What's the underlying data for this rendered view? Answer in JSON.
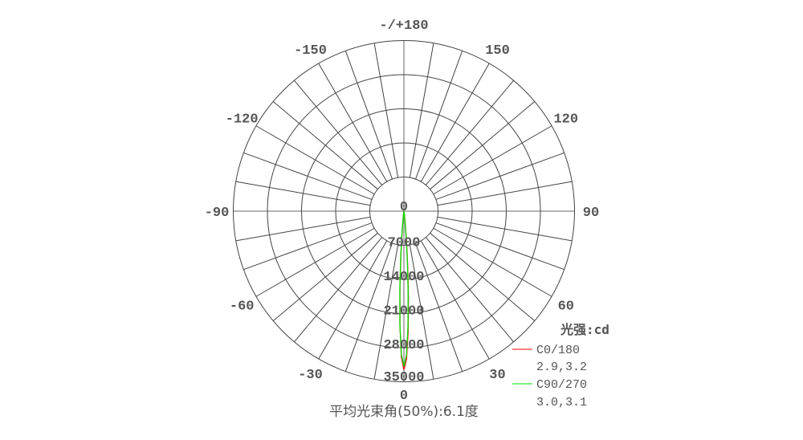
{
  "chart_data": {
    "type": "polar",
    "title": "平均光束角(50%):6.1度",
    "unit_label": "光强:cd",
    "radial_ticks": [
      "0",
      "7000",
      "14000",
      "21000",
      "28000",
      "35000"
    ],
    "radial_values": [
      0,
      7000,
      14000,
      21000,
      28000,
      35000
    ],
    "rmax": 35000,
    "angle_ticks": [
      {
        "angle": 0,
        "label": "0"
      },
      {
        "angle": 30,
        "label": "30"
      },
      {
        "angle": 60,
        "label": "60"
      },
      {
        "angle": 90,
        "label": "90"
      },
      {
        "angle": 120,
        "label": "120"
      },
      {
        "angle": 150,
        "label": "150"
      },
      {
        "angle": 180,
        "label": "-/+180"
      },
      {
        "angle": -150,
        "label": "-150"
      },
      {
        "angle": -120,
        "label": "-120"
      },
      {
        "angle": -90,
        "label": "-90"
      },
      {
        "angle": -60,
        "label": "-60"
      },
      {
        "angle": -30,
        "label": "-30"
      }
    ],
    "spoke_step_deg": 10,
    "grid": true,
    "legend_position": "bottom-right",
    "angles": [
      -8,
      -7,
      -6,
      -5,
      -4,
      -3,
      -2,
      -1,
      0,
      1,
      2,
      3,
      4,
      5,
      6,
      7,
      8
    ],
    "series": [
      {
        "name": "C0/180",
        "half_angles": "2.9,3.2",
        "color": "#ff0000",
        "values": [
          170,
          570,
          1670,
          4140,
          8700,
          15470,
          23370,
          29930,
          32500,
          30370,
          24800,
          17680,
          11000,
          5990,
          2840,
          1180,
          430
        ]
      },
      {
        "name": "C90/270",
        "half_angles": "3.0,3.1",
        "color": "#00e000",
        "values": [
          230,
          730,
          1990,
          4640,
          9280,
          15900,
          23370,
          29440,
          31800,
          29580,
          23820,
          16620,
          10020,
          5240,
          2370,
          930,
          310
        ]
      }
    ]
  }
}
